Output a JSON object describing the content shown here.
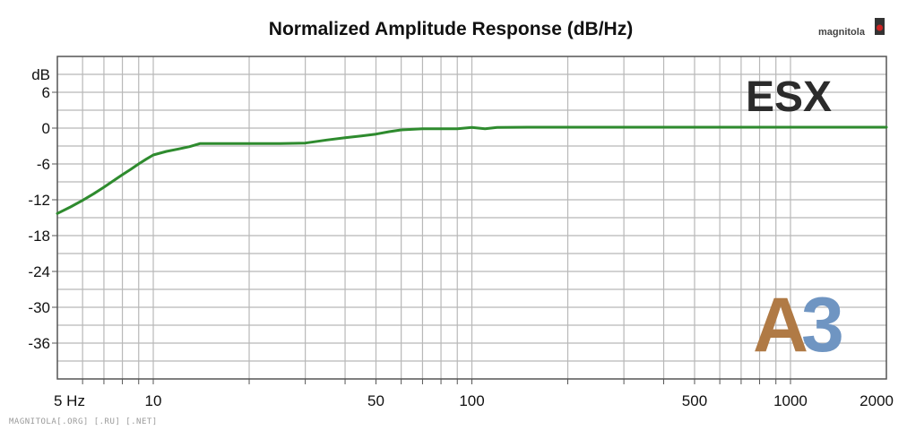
{
  "chart_data": {
    "type": "line",
    "title": "Normalized Amplitude Response (dB/Hz)",
    "ylabel": "dB",
    "x_scale": "log",
    "xlim": [
      5,
      2000
    ],
    "ylim": [
      -42,
      12
    ],
    "grid": true,
    "x_ticks": [
      {
        "value": 5,
        "label": "5 Hz"
      },
      {
        "value": 10,
        "label": "10"
      },
      {
        "value": 50,
        "label": "50"
      },
      {
        "value": 100,
        "label": "100"
      },
      {
        "value": 500,
        "label": "500"
      },
      {
        "value": 1000,
        "label": "1000"
      },
      {
        "value": 2000,
        "label": "2000"
      }
    ],
    "y_ticks": [
      {
        "value": 6,
        "label": "6"
      },
      {
        "value": 0,
        "label": "0"
      },
      {
        "value": -6,
        "label": "-6"
      },
      {
        "value": -12,
        "label": "-12"
      },
      {
        "value": -18,
        "label": "-18"
      },
      {
        "value": -24,
        "label": "-24"
      },
      {
        "value": -30,
        "label": "-30"
      },
      {
        "value": -36,
        "label": "-36"
      }
    ],
    "series": [
      {
        "color": "#2e8b2e",
        "x": [
          5,
          5.5,
          6,
          6.5,
          7,
          7.5,
          8,
          8.5,
          9,
          9.5,
          10,
          11,
          12,
          13,
          14,
          15,
          20,
          25,
          30,
          35,
          40,
          45,
          50,
          55,
          60,
          70,
          80,
          90,
          100,
          110,
          120,
          150,
          200,
          300,
          500,
          700,
          1000,
          1500,
          2000
        ],
        "y": [
          -14.3,
          -13.2,
          -12.1,
          -11.0,
          -9.9,
          -8.8,
          -7.8,
          -6.9,
          -6.0,
          -5.2,
          -4.5,
          -3.9,
          -3.5,
          -3.1,
          -2.6,
          -2.6,
          -2.6,
          -2.6,
          -2.5,
          -2.0,
          -1.6,
          -1.3,
          -1.0,
          -0.6,
          -0.3,
          -0.1,
          -0.1,
          -0.1,
          0.1,
          -0.1,
          0.1,
          0.15,
          0.15,
          0.15,
          0.15,
          0.15,
          0.15,
          0.15,
          0.15
        ]
      }
    ]
  },
  "annotations": {
    "brand": "ESX",
    "model_part1": "A",
    "model_part2": "3",
    "logo": "magnitola",
    "watermark": "MAGNITOLA[.ORG] [.RU] [.NET]"
  }
}
